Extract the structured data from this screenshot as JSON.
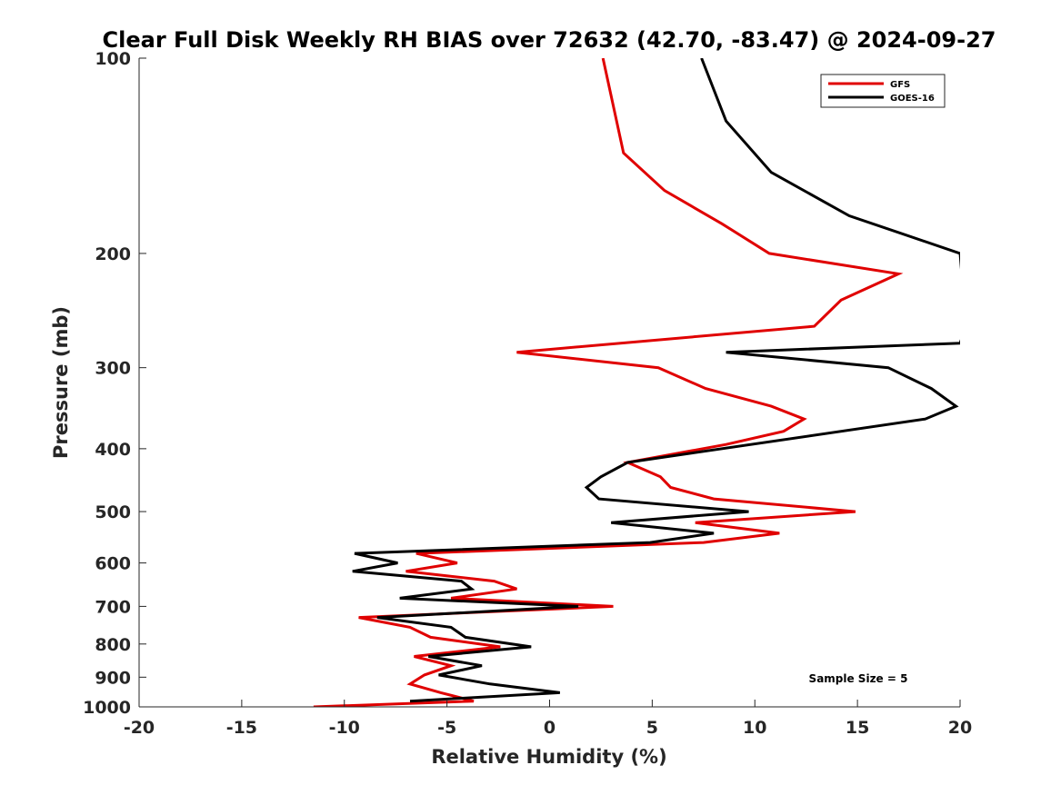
{
  "chart_data": {
    "type": "line",
    "title": "Clear Full Disk Weekly RH BIAS over 72632 (42.70, -83.47) @ 2024-09-27",
    "xlabel": "Relative Humidity (%)",
    "ylabel": "Pressure (mb)",
    "xlim": [
      -20,
      20
    ],
    "ylim": [
      100,
      1000
    ],
    "y_scale": "log",
    "y_reversed": true,
    "x_ticks": [
      -20,
      -15,
      -10,
      -5,
      0,
      5,
      10,
      15,
      20
    ],
    "x_tick_labels": [
      "-20",
      "-15",
      "-10",
      "-5",
      "0",
      "5",
      "10",
      "15",
      "20"
    ],
    "y_ticks": [
      100,
      200,
      300,
      400,
      500,
      600,
      700,
      800,
      900,
      1000
    ],
    "y_tick_labels": [
      "100",
      "200",
      "300",
      "400",
      "500",
      "600",
      "700",
      "800",
      "900",
      "1000"
    ],
    "grid": false,
    "legend_position": "top-right",
    "annotation": "Sample Size = 5",
    "series": [
      {
        "name": "GFS",
        "color": "#e00000",
        "points": [
          [
            2.6,
            100
          ],
          [
            3.6,
            140
          ],
          [
            5.6,
            160
          ],
          [
            8.4,
            180
          ],
          [
            10.7,
            200
          ],
          [
            17.0,
            215
          ],
          [
            14.2,
            236
          ],
          [
            12.9,
            259
          ],
          [
            -1.6,
            284
          ],
          [
            5.3,
            300
          ],
          [
            7.6,
            323
          ],
          [
            10.8,
            344
          ],
          [
            12.4,
            360
          ],
          [
            11.4,
            376
          ],
          [
            8.6,
            394
          ],
          [
            3.8,
            420
          ],
          [
            5.4,
            442
          ],
          [
            5.9,
            459
          ],
          [
            8.0,
            478
          ],
          [
            14.9,
            500
          ],
          [
            7.1,
            520
          ],
          [
            11.2,
            540
          ],
          [
            7.5,
            558
          ],
          [
            -6.5,
            580
          ],
          [
            -4.5,
            600
          ],
          [
            -7.0,
            618
          ],
          [
            -2.7,
            640
          ],
          [
            -1.6,
            658
          ],
          [
            -4.8,
            680
          ],
          [
            3.1,
            700
          ],
          [
            -9.3,
            728
          ],
          [
            -6.8,
            754
          ],
          [
            -5.8,
            781
          ],
          [
            -2.4,
            808
          ],
          [
            -6.6,
            836
          ],
          [
            -4.8,
            864
          ],
          [
            -6.1,
            893
          ],
          [
            -6.8,
            922
          ],
          [
            -5.3,
            951
          ],
          [
            -3.7,
            980
          ],
          [
            -11.5,
            1000
          ]
        ]
      },
      {
        "name": "GOES-16",
        "color": "#000000",
        "points": [
          [
            7.4,
            100
          ],
          [
            8.6,
            125
          ],
          [
            10.8,
            150
          ],
          [
            14.6,
            175
          ],
          [
            20.0,
            200
          ],
          [
            20.3,
            259
          ],
          [
            20.0,
            275
          ],
          [
            8.6,
            284
          ],
          [
            16.5,
            300
          ],
          [
            18.6,
            323
          ],
          [
            19.8,
            344
          ],
          [
            18.3,
            360
          ],
          [
            3.8,
            420
          ],
          [
            2.5,
            442
          ],
          [
            1.8,
            459
          ],
          [
            2.4,
            478
          ],
          [
            9.7,
            500
          ],
          [
            3.0,
            520
          ],
          [
            8.0,
            540
          ],
          [
            4.9,
            558
          ],
          [
            -9.5,
            580
          ],
          [
            -7.4,
            600
          ],
          [
            -9.6,
            618
          ],
          [
            -4.3,
            640
          ],
          [
            -3.8,
            658
          ],
          [
            -7.3,
            680
          ],
          [
            1.4,
            700
          ],
          [
            -8.4,
            728
          ],
          [
            -4.8,
            754
          ],
          [
            -4.1,
            781
          ],
          [
            -0.9,
            808
          ],
          [
            -5.9,
            836
          ],
          [
            -3.3,
            864
          ],
          [
            -5.4,
            893
          ],
          [
            -2.9,
            922
          ],
          [
            0.5,
            951
          ],
          [
            -6.8,
            980
          ]
        ]
      }
    ]
  }
}
